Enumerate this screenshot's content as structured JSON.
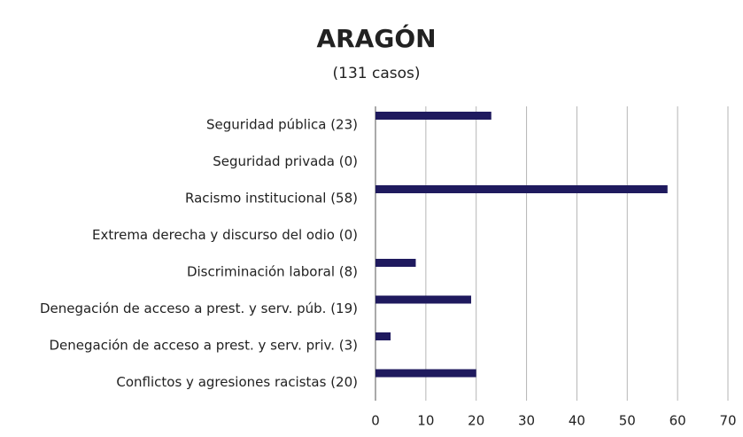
{
  "chart_data": {
    "type": "barh",
    "title": "ARAGÓN",
    "subtitle": "(131 casos)",
    "categories": [
      "Seguridad pública (23)",
      "Seguridad privada (0)",
      "Racismo institucional  (58)",
      "Extrema derecha y discurso del odio (0)",
      "Discriminación laboral (8)",
      "Denegación de acceso a prest. y serv. púb. (19)",
      "Denegación de acceso a prest. y serv. priv. (3)",
      "Conflictos y agresiones racistas (20)"
    ],
    "values": [
      23,
      0,
      58,
      0,
      8,
      19,
      3,
      20
    ],
    "color": "#1f1a5e",
    "xlim": [
      0,
      70
    ],
    "xticks": [
      0,
      10,
      20,
      30,
      40,
      50,
      60,
      70
    ],
    "grid": true
  }
}
